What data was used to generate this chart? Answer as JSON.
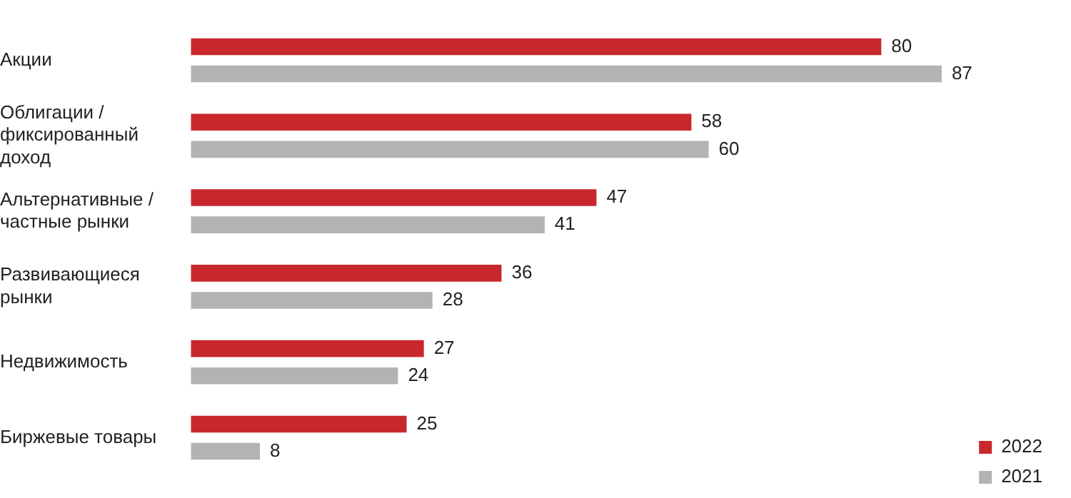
{
  "chart_data": {
    "type": "bar",
    "orientation": "horizontal",
    "categories": [
      "Акции",
      "Облигации / фиксированный доход",
      "Альтернативные / частные рынки",
      "Развивающиеся рынки",
      "Недвижимость",
      "Биржевые товары"
    ],
    "series": [
      {
        "name": "2022",
        "color": "#c8282d",
        "values": [
          80,
          58,
          47,
          36,
          27,
          25
        ]
      },
      {
        "name": "2021",
        "color": "#b3b3b3",
        "values": [
          87,
          60,
          41,
          28,
          24,
          8
        ]
      }
    ],
    "data_labels": true,
    "legend": "bottom right"
  }
}
